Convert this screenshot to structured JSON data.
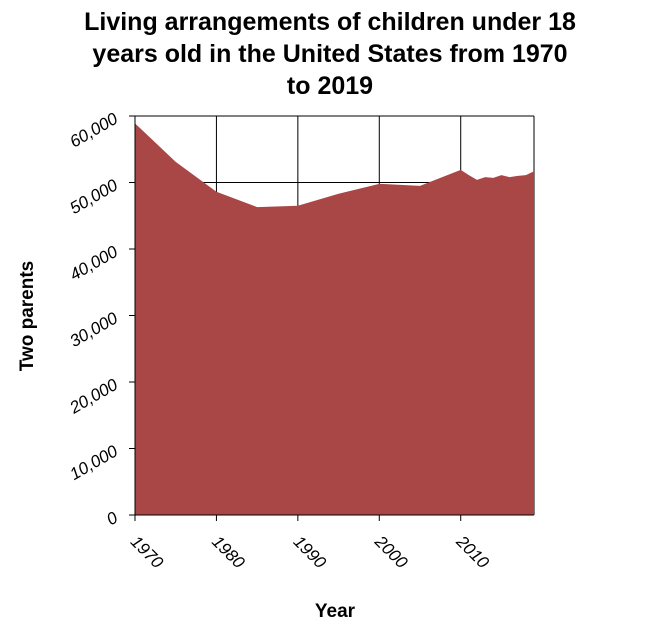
{
  "chart_data": {
    "type": "area",
    "title_lines": [
      "Living arrangements of children under 18",
      "years old in the United States from 1970",
      "to 2019"
    ],
    "xlabel": "Year",
    "ylabel": "Two parents",
    "xlim": [
      1970,
      2019
    ],
    "ylim": [
      0,
      60000
    ],
    "xticks": [
      1970,
      1980,
      1990,
      2000,
      2010
    ],
    "xtick_labels": [
      "1970",
      "1980",
      "1990",
      "2000",
      "2010"
    ],
    "yticks": [
      0,
      10000,
      20000,
      30000,
      40000,
      50000,
      60000
    ],
    "ytick_labels": [
      "0",
      "10,000",
      "20,000",
      "30,000",
      "40,000",
      "50,000",
      "60,000"
    ],
    "grid": true,
    "fill_color": "#a84746",
    "series": [
      {
        "x": [
          1970,
          1975,
          1980,
          1985,
          1990,
          1995,
          2000,
          2005,
          2010,
          2011,
          2012,
          2013,
          2014,
          2015,
          2016,
          2017,
          2018,
          2019
        ],
        "values": [
          58900,
          53100,
          48600,
          46300,
          46500,
          48300,
          49800,
          49500,
          51900,
          51100,
          50400,
          50800,
          50700,
          51100,
          50800,
          51000,
          51100,
          51700
        ]
      }
    ]
  }
}
